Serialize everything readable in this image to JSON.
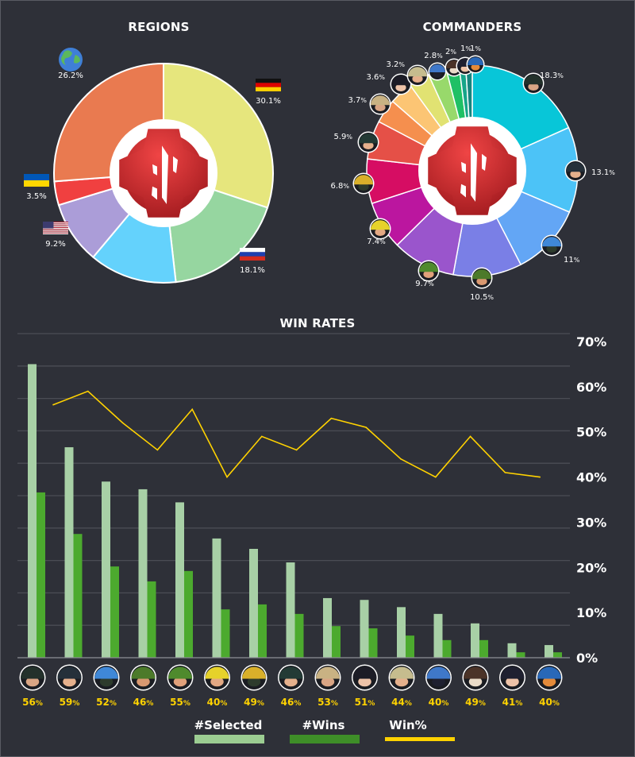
{
  "chart_data": [
    {
      "type": "pie",
      "title": "REGIONS",
      "slices": [
        {
          "name": "Germany",
          "icon": "germany-flag-icon",
          "value": 30.1,
          "label": "30.1%",
          "color": "#e6e67d"
        },
        {
          "name": "Russia",
          "icon": "russia-flag-icon",
          "value": 18.1,
          "label": "18.1%",
          "color": "#96d6a0"
        },
        {
          "name": "Other",
          "icon": "",
          "value": 12.9,
          "label": "",
          "color": "#64d2fc"
        },
        {
          "name": "USA",
          "icon": "usa-flag-icon",
          "value": 9.2,
          "label": "9.2%",
          "color": "#ab9dd8"
        },
        {
          "name": "Ukraine",
          "icon": "ukraine-flag-icon",
          "value": 3.5,
          "label": "3.5%",
          "color": "#f04040"
        },
        {
          "name": "World",
          "icon": "globe-icon",
          "value": 26.2,
          "label": "26.2%",
          "color": "#e97a50"
        }
      ]
    },
    {
      "type": "pie",
      "title": "COMMANDERS",
      "slices": [
        {
          "icon": "commander-top-hat-icon",
          "value": 18.3,
          "label": "18.3",
          "color": "#08c6d8"
        },
        {
          "icon": "commander-ushanka-icon",
          "value": 13.1,
          "label": "13.1",
          "color": "#4cc3f7"
        },
        {
          "icon": "commander-blue-helmet-gasmask-icon",
          "value": 11,
          "label": "11",
          "color": "#63a6f5"
        },
        {
          "icon": "commander-green-bush-hat-icon",
          "value": 10.5,
          "label": "10.5",
          "color": "#7a7fe6"
        },
        {
          "icon": "commander-green-helmet-icon",
          "value": 9.7,
          "label": "9.7",
          "color": "#9a55cc"
        },
        {
          "icon": "commander-yellow-hard-hat-icon",
          "value": 7.4,
          "label": "7.4",
          "color": "#bb169f"
        },
        {
          "icon": "commander-gold-mitre-icon",
          "value": 6.8,
          "label": "6.8",
          "color": "#d60d63"
        },
        {
          "icon": "commander-ushanka-green-icon",
          "value": 5.9,
          "label": "5.9",
          "color": "#e55047"
        },
        {
          "icon": "commander-messy-hair-icon",
          "value": 3.7,
          "label": "3.7",
          "color": "#f58f4e"
        },
        {
          "icon": "commander-black-beret-icon",
          "value": 3.6,
          "label": "3.6",
          "color": "#fcc574"
        },
        {
          "icon": "commander-skull-hat-icon",
          "value": 3.2,
          "label": "3.2",
          "color": "#e1e272"
        },
        {
          "icon": "commander-riot-helmet-icon",
          "value": 2.8,
          "label": "2.8",
          "color": "#98d96b"
        },
        {
          "icon": "commander-fur-hat-icon",
          "value": 2,
          "label": "2",
          "color": "#1fc065"
        },
        {
          "icon": "commander-dark-beret-icon",
          "value": 1,
          "label": "1",
          "color": "#16a589"
        },
        {
          "icon": "commander-blue-beret-icon",
          "value": 1,
          "label": "1",
          "color": "#17857e"
        }
      ],
      "percent_suffix": "%"
    },
    {
      "type": "bar",
      "title": "WIN RATES",
      "y_ticks": [
        "0%",
        "10%",
        "20%",
        "30%",
        "40%",
        "50%",
        "60%",
        "70%"
      ],
      "ylim": [
        0,
        70
      ],
      "grid": true,
      "categories": [
        "commander-top-hat-icon",
        "commander-ushanka-icon",
        "commander-blue-helmet-gasmask-icon",
        "commander-green-bush-hat-icon",
        "commander-green-helmet-icon",
        "commander-yellow-hard-hat-icon",
        "commander-gold-mitre-icon",
        "commander-ushanka-green-icon",
        "commander-messy-hair-icon",
        "commander-black-beret-icon",
        "commander-skull-hat-icon",
        "commander-riot-helmet-icon",
        "commander-fur-hat-icon",
        "commander-dark-beret-icon",
        "commander-blue-beret-icon"
      ],
      "series": [
        {
          "name": "#Selected",
          "type": "bar",
          "color": "#a8d0a6",
          "values": [
            65.0,
            46.6,
            39.0,
            37.3,
            34.4,
            26.4,
            24.1,
            21.1,
            13.2,
            12.8,
            11.2,
            9.7,
            7.6,
            3.2,
            2.8
          ]
        },
        {
          "name": "#Wins",
          "type": "bar",
          "color": "#4caa2e",
          "values": [
            36.6,
            27.4,
            20.2,
            16.9,
            19.2,
            10.7,
            11.8,
            9.7,
            7.0,
            6.5,
            4.9,
            3.9,
            3.9,
            1.2,
            1.2
          ]
        },
        {
          "name": "Win%",
          "type": "line",
          "color": "#ffd200",
          "values": [
            56,
            59,
            52,
            46,
            55,
            40,
            49,
            46,
            53,
            51,
            44,
            40,
            49,
            41,
            40
          ]
        }
      ],
      "category_labels": [
        "56",
        "59",
        "52",
        "46",
        "55",
        "40",
        "49",
        "46",
        "53",
        "51",
        "44",
        "40",
        "49",
        "41",
        "40"
      ],
      "legend": {
        "position": "bottom",
        "items": [
          {
            "label": "#Selected",
            "color": "#9ccd92"
          },
          {
            "label": "#Wins",
            "color": "#3e8e28"
          },
          {
            "label": "Win%",
            "color": "#ffd200"
          }
        ]
      }
    }
  ]
}
